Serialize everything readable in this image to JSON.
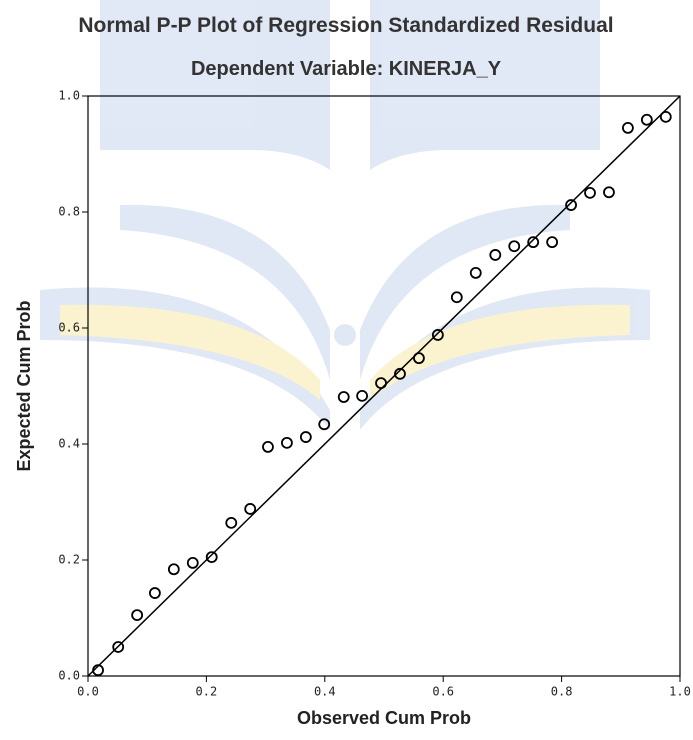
{
  "chart_data": {
    "type": "scatter",
    "title": "Normal P-P Plot of Regression Standardized Residual",
    "subtitle": "Dependent Variable: KINERJA_Y",
    "x_label": "Observed Cum Prob",
    "y_label": "Expected Cum Prob",
    "x": [
      0.017,
      0.051,
      0.083,
      0.113,
      0.145,
      0.177,
      0.209,
      0.242,
      0.274,
      0.304,
      0.336,
      0.368,
      0.399,
      0.432,
      0.463,
      0.495,
      0.527,
      0.559,
      0.591,
      0.623,
      0.655,
      0.688,
      0.72,
      0.752,
      0.784,
      0.816,
      0.848,
      0.88,
      0.912,
      0.944,
      0.976
    ],
    "values": [
      0.01,
      0.05,
      0.105,
      0.143,
      0.184,
      0.195,
      0.205,
      0.264,
      0.288,
      0.395,
      0.402,
      0.412,
      0.434,
      0.481,
      0.483,
      0.505,
      0.521,
      0.548,
      0.588,
      0.653,
      0.695,
      0.726,
      0.741,
      0.748,
      0.748,
      0.812,
      0.833,
      0.834,
      0.945,
      0.959,
      0.964
    ],
    "color": "#000000",
    "xlim": [
      0,
      1
    ],
    "ylim": [
      0,
      1
    ],
    "xticks": [
      {
        "value": 0,
        "label": "0.0"
      },
      0.2,
      0.4,
      0.6,
      0.8,
      {
        "value": 1,
        "label": "1.0"
      }
    ],
    "yticks": [
      {
        "value": 0,
        "label": "0.0"
      },
      0.2,
      0.4,
      0.6,
      0.8,
      {
        "value": 1,
        "label": "1.0"
      }
    ],
    "grid": false
  }
}
